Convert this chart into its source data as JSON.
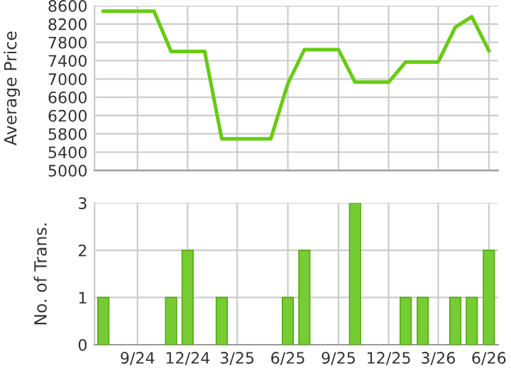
{
  "chart_data": [
    {
      "type": "line",
      "ylabel": "Average Price",
      "xlim": [
        "2024-06-15",
        "2026-06-18"
      ],
      "ylim": [
        5000,
        8600
      ],
      "yticks": [
        5000,
        5400,
        5800,
        6200,
        6600,
        7000,
        7400,
        7800,
        8200,
        8600
      ],
      "xticks": [
        {
          "value": "2024-09",
          "label": null
        },
        {
          "value": "2024-12",
          "label": null
        },
        {
          "value": "2025-03",
          "label": null
        },
        {
          "value": "2025-06",
          "label": null
        },
        {
          "value": "2025-09",
          "label": null
        },
        {
          "value": "2025-12",
          "label": null
        },
        {
          "value": "2026-03",
          "label": null
        },
        {
          "value": "2026-06",
          "label": null
        }
      ],
      "tick_labels": "y",
      "grid": true,
      "marker": "none",
      "series": [
        {
          "color": "#66cc11",
          "line_style": "solid",
          "x": [
            "2024-07",
            "2024-08",
            "2024-09",
            "2024-10",
            "2024-11",
            "2024-12",
            "2025-01",
            "2025-02",
            "2025-03",
            "2025-04",
            "2025-05",
            "2025-06",
            "2025-07",
            "2025-08",
            "2025-09",
            "2025-10",
            "2025-11",
            "2025-12",
            "2026-01",
            "2026-02",
            "2026-03",
            "2026-04",
            "2026-05",
            "2026-06"
          ],
          "values": [
            8480,
            8480,
            8480,
            8480,
            7600,
            7600,
            7600,
            5690,
            5690,
            5690,
            5690,
            6900,
            7640,
            7640,
            7640,
            6930,
            6930,
            6930,
            7370,
            7370,
            7370,
            8130,
            8360,
            7620
          ]
        }
      ]
    },
    {
      "type": "bar",
      "ylabel": "No. of Trans.",
      "xlim": [
        "2024-06-15",
        "2026-06-18"
      ],
      "ylim": [
        0,
        3
      ],
      "yticks": [
        0,
        1,
        2,
        3
      ],
      "xticks": [
        {
          "value": "2024-09",
          "label": "9/24"
        },
        {
          "value": "2024-12",
          "label": "12/24"
        },
        {
          "value": "2025-03",
          "label": "3/25"
        },
        {
          "value": "2025-06",
          "label": "6/25"
        },
        {
          "value": "2025-09",
          "label": "9/25"
        },
        {
          "value": "2025-12",
          "label": "12/25"
        },
        {
          "value": "2026-03",
          "label": "3/26"
        },
        {
          "value": "2026-06",
          "label": "6/26"
        }
      ],
      "grid": true,
      "color": "#77cc33",
      "x": [
        "2024-07",
        "2024-11",
        "2024-12",
        "2025-02",
        "2025-06",
        "2025-07",
        "2025-10",
        "2026-01",
        "2026-02",
        "2026-04",
        "2026-05",
        "2026-06"
      ],
      "values": [
        1,
        1,
        2,
        1,
        1,
        2,
        3,
        1,
        1,
        1,
        1,
        2
      ]
    }
  ]
}
